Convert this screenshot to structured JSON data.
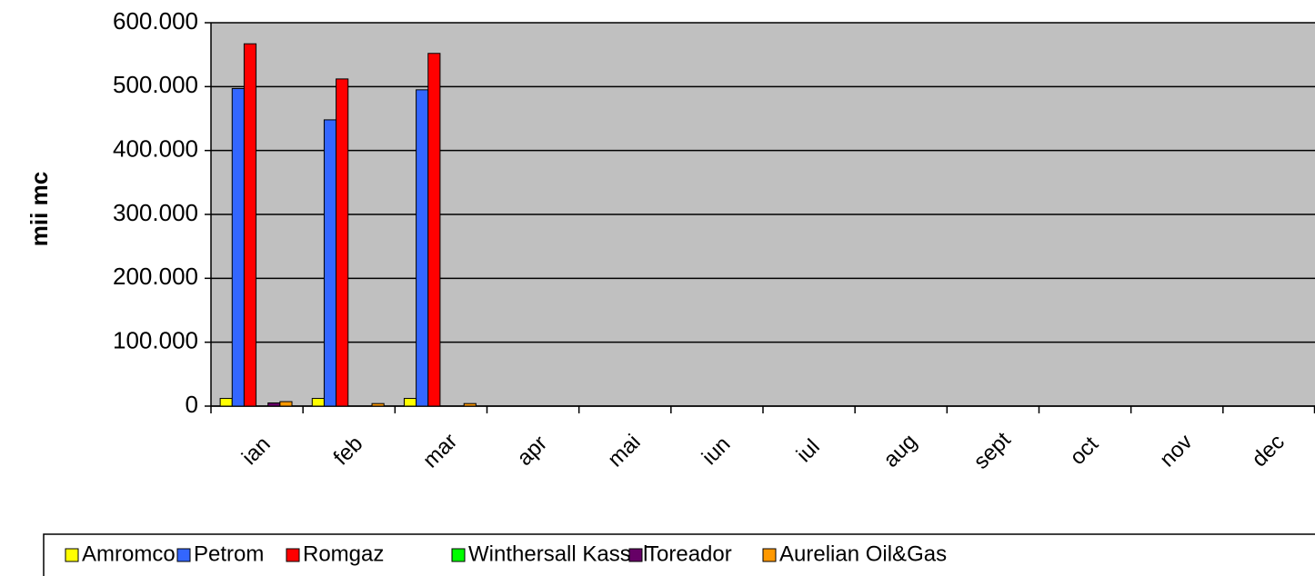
{
  "chart_data": {
    "type": "bar",
    "y_label": "mii mc",
    "categories": [
      "ian",
      "feb",
      "mar",
      "apr",
      "mai",
      "iun",
      "iul",
      "aug",
      "sept",
      "oct",
      "nov",
      "dec"
    ],
    "series": [
      {
        "name": "Amromco",
        "color": "#ffff00",
        "values": [
          12000,
          12000,
          12000,
          null,
          null,
          null,
          null,
          null,
          null,
          null,
          null,
          null
        ]
      },
      {
        "name": "Petrom",
        "color": "#3366ff",
        "values": [
          497000,
          448000,
          495000,
          null,
          null,
          null,
          null,
          null,
          null,
          null,
          null,
          null
        ]
      },
      {
        "name": "Romgaz",
        "color": "#ff0000",
        "values": [
          567000,
          512000,
          552000,
          null,
          null,
          null,
          null,
          null,
          null,
          null,
          null,
          null
        ]
      },
      {
        "name": "Winthersall Kassel",
        "color": "#00ff00",
        "values": [
          0,
          0,
          0,
          null,
          null,
          null,
          null,
          null,
          null,
          null,
          null,
          null
        ]
      },
      {
        "name": "Toreador",
        "color": "#660066",
        "values": [
          5000,
          0,
          0,
          null,
          null,
          null,
          null,
          null,
          null,
          null,
          null,
          null
        ]
      },
      {
        "name": "Aurelian Oil&Gas",
        "color": "#ff9900",
        "values": [
          7000,
          4000,
          4000,
          null,
          null,
          null,
          null,
          null,
          null,
          null,
          null,
          null
        ]
      }
    ],
    "ylim": [
      0,
      600000
    ],
    "yticks": [
      0,
      {
        "value": 100000,
        "label": "100.000"
      },
      {
        "value": 200000,
        "label": "200.000"
      },
      {
        "value": 300000,
        "label": "300.000"
      },
      {
        "value": 400000,
        "label": "400.000"
      },
      {
        "value": 500000,
        "label": "500.000"
      },
      {
        "value": 600000,
        "label": "600.000"
      }
    ],
    "grid": true,
    "plot_background": "#c0c0c0",
    "legend": "bottom"
  }
}
